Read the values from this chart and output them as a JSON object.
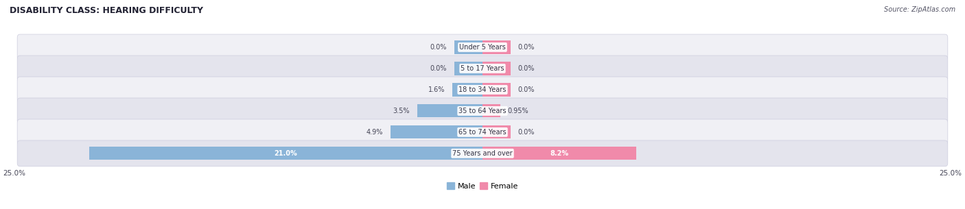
{
  "title": "DISABILITY CLASS: HEARING DIFFICULTY",
  "source": "Source: ZipAtlas.com",
  "categories": [
    "Under 5 Years",
    "5 to 17 Years",
    "18 to 34 Years",
    "35 to 64 Years",
    "65 to 74 Years",
    "75 Years and over"
  ],
  "male_values": [
    0.0,
    0.0,
    1.6,
    3.5,
    4.9,
    21.0
  ],
  "female_values": [
    0.0,
    0.0,
    0.0,
    0.95,
    0.0,
    8.2
  ],
  "male_labels": [
    "0.0%",
    "0.0%",
    "1.6%",
    "3.5%",
    "4.9%",
    "21.0%"
  ],
  "female_labels": [
    "0.0%",
    "0.0%",
    "0.0%",
    "0.95%",
    "0.0%",
    "8.2%"
  ],
  "male_color": "#8ab4d8",
  "female_color": "#f08aaa",
  "male_label": "Male",
  "female_label": "Female",
  "axis_max": 25.0,
  "min_stub": 1.5,
  "bar_height": 0.62,
  "row_bg_light": "#f0f0f5",
  "row_bg_dark": "#e4e4ed",
  "title_fontsize": 9,
  "source_fontsize": 7,
  "category_fontsize": 7,
  "value_fontsize": 7,
  "legend_fontsize": 8
}
